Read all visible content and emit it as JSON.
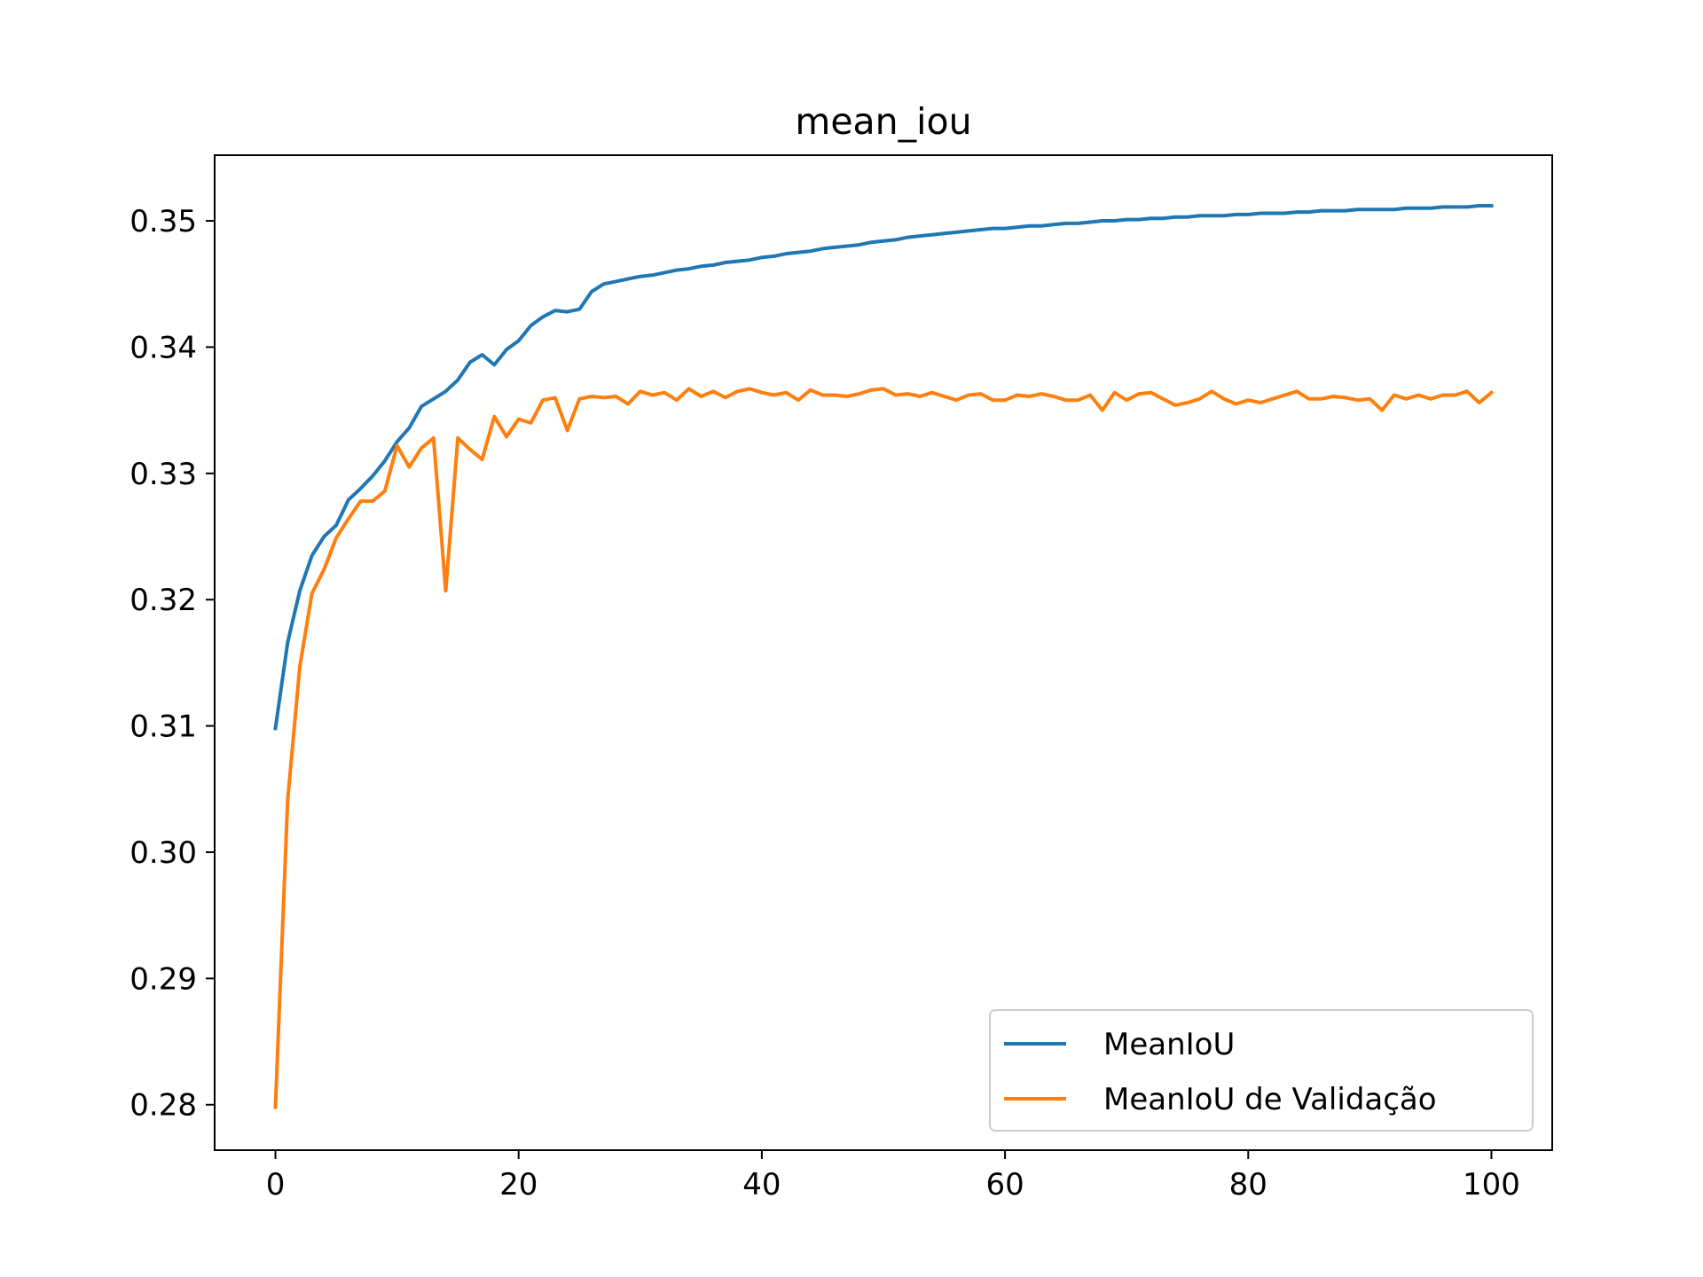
{
  "chart_data": {
    "type": "line",
    "title": "mean_iou",
    "xlabel": "",
    "ylabel": "",
    "xlim": [
      -5,
      105
    ],
    "ylim": [
      0.2764,
      0.3552
    ],
    "xticks": [
      0,
      20,
      40,
      60,
      80,
      100
    ],
    "xtick_labels": [
      "0",
      "20",
      "40",
      "60",
      "80",
      "100"
    ],
    "yticks": [
      0.28,
      0.29,
      0.3,
      0.31,
      0.32,
      0.33,
      0.34,
      0.35
    ],
    "ytick_labels": [
      "0.28",
      "0.29",
      "0.30",
      "0.31",
      "0.32",
      "0.33",
      "0.34",
      "0.35"
    ],
    "grid": false,
    "legend_position": "lower right",
    "series": [
      {
        "name": "MeanIoU",
        "color": "#1f77b4",
        "x": [
          0,
          1,
          2,
          3,
          4,
          5,
          6,
          7,
          8,
          9,
          10,
          11,
          12,
          13,
          14,
          15,
          16,
          17,
          18,
          19,
          20,
          21,
          22,
          23,
          24,
          25,
          26,
          27,
          28,
          29,
          30,
          31,
          32,
          33,
          34,
          35,
          36,
          37,
          38,
          39,
          40,
          41,
          42,
          43,
          44,
          45,
          46,
          47,
          48,
          49,
          50,
          51,
          52,
          53,
          54,
          55,
          56,
          57,
          58,
          59,
          60,
          61,
          62,
          63,
          64,
          65,
          66,
          67,
          68,
          69,
          70,
          71,
          72,
          73,
          74,
          75,
          76,
          77,
          78,
          79,
          80,
          81,
          82,
          83,
          84,
          85,
          86,
          87,
          88,
          89,
          90,
          91,
          92,
          93,
          94,
          95,
          96,
          97,
          98,
          99,
          100
        ],
        "y": [
          0.3098,
          0.3166,
          0.3207,
          0.3235,
          0.325,
          0.3259,
          0.3279,
          0.3288,
          0.3298,
          0.331,
          0.3325,
          0.3336,
          0.3353,
          0.3359,
          0.3365,
          0.3374,
          0.3388,
          0.3394,
          0.3386,
          0.3398,
          0.3405,
          0.3417,
          0.3424,
          0.3429,
          0.3428,
          0.343,
          0.3444,
          0.345,
          0.3452,
          0.3454,
          0.3456,
          0.3457,
          0.3459,
          0.3461,
          0.3462,
          0.3464,
          0.3465,
          0.3467,
          0.3468,
          0.3469,
          0.3471,
          0.3472,
          0.3474,
          0.3475,
          0.3476,
          0.3478,
          0.3479,
          0.348,
          0.3481,
          0.3483,
          0.3484,
          0.3485,
          0.3487,
          0.3488,
          0.3489,
          0.349,
          0.3491,
          0.3492,
          0.3493,
          0.3494,
          0.3494,
          0.3495,
          0.3496,
          0.3496,
          0.3497,
          0.3498,
          0.3498,
          0.3499,
          0.35,
          0.35,
          0.3501,
          0.3501,
          0.3502,
          0.3502,
          0.3503,
          0.3503,
          0.3504,
          0.3504,
          0.3504,
          0.3505,
          0.3505,
          0.3506,
          0.3506,
          0.3506,
          0.3507,
          0.3507,
          0.3508,
          0.3508,
          0.3508,
          0.3509,
          0.3509,
          0.3509,
          0.3509,
          0.351,
          0.351,
          0.351,
          0.3511,
          0.3511,
          0.3511,
          0.3512,
          0.3512
        ]
      },
      {
        "name": "MeanIoU de Validação",
        "color": "#ff7f0e",
        "x": [
          0,
          1,
          2,
          3,
          4,
          5,
          6,
          7,
          8,
          9,
          10,
          11,
          12,
          13,
          14,
          15,
          16,
          17,
          18,
          19,
          20,
          21,
          22,
          23,
          24,
          25,
          26,
          27,
          28,
          29,
          30,
          31,
          32,
          33,
          34,
          35,
          36,
          37,
          38,
          39,
          40,
          41,
          42,
          43,
          44,
          45,
          46,
          47,
          48,
          49,
          50,
          51,
          52,
          53,
          54,
          55,
          56,
          57,
          58,
          59,
          60,
          61,
          62,
          63,
          64,
          65,
          66,
          67,
          68,
          69,
          70,
          71,
          72,
          73,
          74,
          75,
          76,
          77,
          78,
          79,
          80,
          81,
          82,
          83,
          84,
          85,
          86,
          87,
          88,
          89,
          90,
          91,
          92,
          93,
          94,
          95,
          96,
          97,
          98,
          99,
          100
        ],
        "y": [
          0.2798,
          0.3041,
          0.3147,
          0.3205,
          0.3224,
          0.3249,
          0.3264,
          0.3278,
          0.3278,
          0.3286,
          0.3322,
          0.3305,
          0.332,
          0.3328,
          0.3207,
          0.3328,
          0.3319,
          0.3311,
          0.3345,
          0.3329,
          0.3343,
          0.334,
          0.3358,
          0.336,
          0.3334,
          0.3359,
          0.3361,
          0.336,
          0.3361,
          0.3355,
          0.3365,
          0.3362,
          0.3364,
          0.3358,
          0.3367,
          0.3361,
          0.3365,
          0.336,
          0.3365,
          0.3367,
          0.3364,
          0.3362,
          0.3364,
          0.3358,
          0.3366,
          0.3362,
          0.3362,
          0.3361,
          0.3363,
          0.3366,
          0.3367,
          0.3362,
          0.3363,
          0.3361,
          0.3364,
          0.3361,
          0.3358,
          0.3362,
          0.3363,
          0.3358,
          0.3358,
          0.3362,
          0.3361,
          0.3363,
          0.3361,
          0.3358,
          0.3358,
          0.3362,
          0.335,
          0.3364,
          0.3358,
          0.3363,
          0.3364,
          0.3359,
          0.3354,
          0.3356,
          0.3359,
          0.3365,
          0.3359,
          0.3355,
          0.3358,
          0.3356,
          0.3359,
          0.3362,
          0.3365,
          0.3359,
          0.3359,
          0.3361,
          0.336,
          0.3358,
          0.3359,
          0.335,
          0.3362,
          0.3359,
          0.3362,
          0.3359,
          0.3362,
          0.3362,
          0.3365,
          0.3356,
          0.3364
        ]
      }
    ]
  }
}
